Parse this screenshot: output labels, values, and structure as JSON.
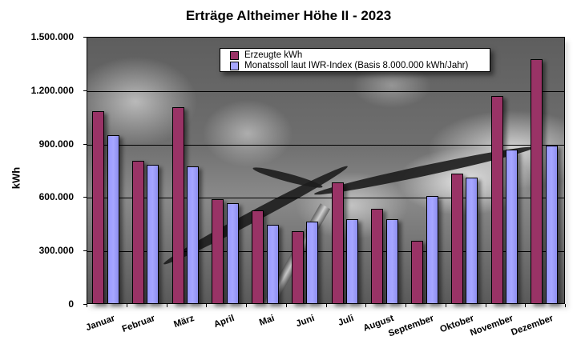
{
  "title": "Erträge Altheimer Höhe II - 2023",
  "colors": {
    "erzeugt": "#993366",
    "soll": "#9999ff"
  },
  "chart_data": {
    "type": "bar",
    "title": "Erträge Altheimer Höhe II - 2023",
    "xlabel": "",
    "ylabel": "kWh",
    "ylim": [
      0,
      1500000
    ],
    "yticks": [
      0,
      300000,
      600000,
      900000,
      1200000,
      1500000
    ],
    "ytick_labels": [
      "0",
      "300.000",
      "600.000",
      "900.000",
      "1.200.000",
      "1.500.000"
    ],
    "grid": true,
    "legend_position": "top-center inside plot",
    "categories": [
      "Januar",
      "Februar",
      "März",
      "April",
      "Mai",
      "Juni",
      "Juli",
      "August",
      "September",
      "Oktober",
      "November",
      "Dezember"
    ],
    "series": [
      {
        "name": "Erzeugte kWh",
        "color": "#993366",
        "values": [
          1081000,
          802000,
          1105000,
          587000,
          524000,
          407000,
          681000,
          533000,
          353000,
          731000,
          1168000,
          1373000
        ]
      },
      {
        "name": "Monatssoll laut IWR-Index (Basis 8.000.000 kWh/Jahr)",
        "color": "#9999ff",
        "values": [
          946000,
          780000,
          771000,
          564000,
          443000,
          461000,
          475000,
          475000,
          605000,
          708000,
          865000,
          891000
        ]
      }
    ]
  },
  "legend": {
    "items": [
      "Erzeugte kWh",
      "Monatssoll laut IWR-Index (Basis 8.000.000 kWh/Jahr)"
    ]
  }
}
